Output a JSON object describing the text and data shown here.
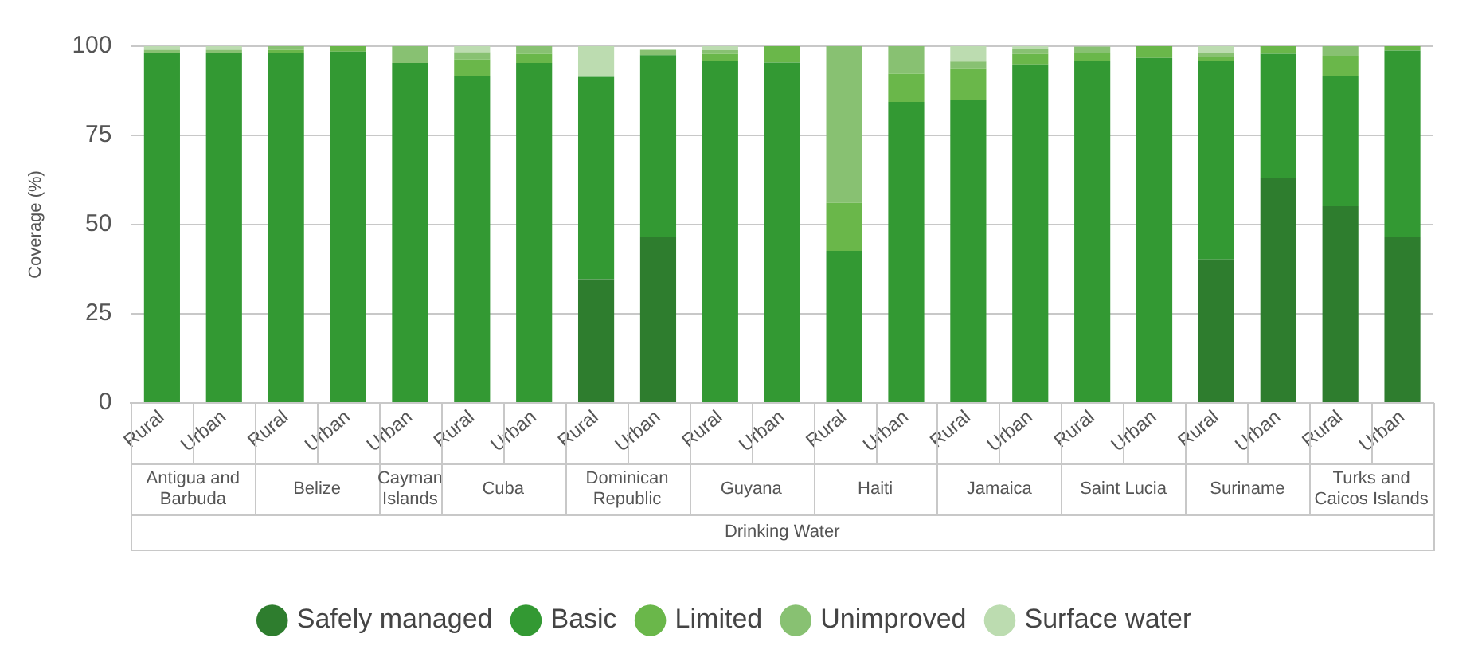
{
  "chart_data": {
    "type": "bar",
    "stacked": true,
    "ylabel": "Coverage (%)",
    "ylim": [
      0,
      100
    ],
    "yticks": [
      0,
      25,
      50,
      75,
      100
    ],
    "grid": "y",
    "legend": "bottom",
    "categories": [
      "Rural",
      "Urban",
      "Rural",
      "Urban",
      "Urban",
      "Rural",
      "Urban",
      "Rural",
      "Urban",
      "Rural",
      "Urban",
      "Rural",
      "Urban",
      "Rural",
      "Urban",
      "Rural",
      "Urban",
      "Rural",
      "Urban",
      "Rural",
      "Urban"
    ],
    "series": [
      {
        "name": "Safely managed",
        "color": "#2e7d2e",
        "values": [
          null,
          null,
          null,
          null,
          null,
          null,
          null,
          34.7,
          46.4,
          null,
          null,
          null,
          null,
          null,
          null,
          null,
          null,
          40.2,
          63.1,
          55.1,
          46.4
        ]
      },
      {
        "name": "Basic",
        "color": "#339933",
        "values": [
          98,
          98,
          98,
          98.5,
          95.3,
          91.6,
          95.3,
          56.7,
          51.1,
          95.8,
          95.4,
          42.6,
          84.4,
          85,
          94.9,
          96,
          96.7,
          55.8,
          34.8,
          36.5,
          52.4
        ]
      },
      {
        "name": "Limited",
        "color": "#6ab74a",
        "values": [
          null,
          null,
          1,
          1.5,
          null,
          4.7,
          2.6,
          null,
          null,
          2.1,
          4.6,
          13.5,
          7.9,
          8.6,
          2.9,
          2.2,
          3.3,
          1,
          2.1,
          5.7,
          1.2
        ]
      },
      {
        "name": "Unimproved",
        "color": "#88c172",
        "values": [
          1,
          1,
          1,
          null,
          4.7,
          2,
          2.1,
          null,
          1.5,
          1,
          null,
          43.9,
          7.7,
          2.1,
          1.3,
          1.7,
          null,
          1,
          null,
          2.8,
          null
        ]
      },
      {
        "name": "Surface water",
        "color": "#bcdcb0",
        "values": [
          1,
          1,
          null,
          null,
          null,
          1.7,
          null,
          8.6,
          null,
          1.1,
          null,
          null,
          null,
          4.3,
          0.9,
          null,
          null,
          2,
          null,
          null,
          null
        ]
      }
    ],
    "annotations": [
      "Antigua and Barbuda",
      "Belize",
      "Cayman Islands",
      "Cuba",
      "Dominican Republic",
      "Guyana",
      "Haiti",
      "Jamaica",
      "Saint Lucia",
      "Suriname",
      "Turks and Caicos Islands",
      "Drinking Water"
    ]
  }
}
